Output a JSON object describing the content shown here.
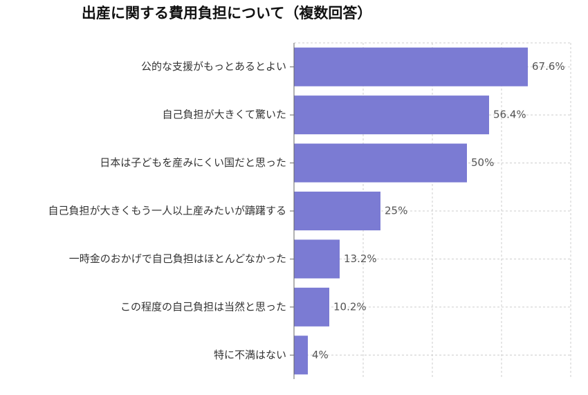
{
  "chart_data": {
    "type": "barh",
    "title": "出産に関する費用負担について（複数回答）",
    "categories": [
      "公的な支援がもっとあるとよい",
      "自己負担が大きくて驚いた",
      "日本は子どもを産みにくい国だと思った",
      "自己負担が大きくもう一人以上産みたいが躊躇する",
      "一時金のおかげで自己負担はほとんどなかった",
      "この程度の自己負担は当然と思った",
      "特に不満はない"
    ],
    "values": [
      67.6,
      56.4,
      50,
      25,
      13.2,
      10.2,
      4
    ],
    "value_labels": [
      "67.6%",
      "56.4%",
      "50%",
      "25%",
      "13.2%",
      "10.2%",
      "4%"
    ],
    "color": "#7b7bd3",
    "xlim": [
      0,
      80
    ],
    "xticks": [
      0,
      20,
      40,
      60,
      80
    ],
    "grid": true
  }
}
